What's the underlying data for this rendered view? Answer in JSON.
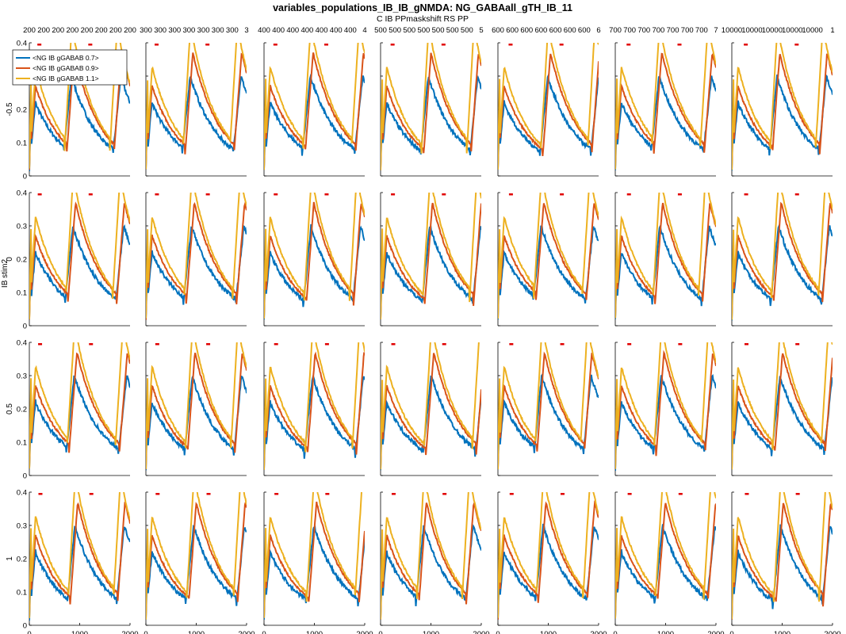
{
  "chart_data": {
    "type": "line",
    "title": "variables_populations_IB_IB_gNMDA: NG_GABAall_gTH_IB_11",
    "subtitle": "C IB PPmaskshift RS PP",
    "rows": [
      "-0.5",
      "0",
      "0.5",
      "1"
    ],
    "row_axis_label": "IB stim2",
    "columns": [
      "200",
      "300",
      "400",
      "500",
      "600",
      "700",
      "10000"
    ],
    "top_tick_labels": [
      [
        "200",
        "200",
        "200",
        "200",
        "200",
        "200",
        "200",
        "200"
      ],
      [
        "300",
        "300",
        "300",
        "300",
        "300",
        "300",
        "300",
        "3"
      ],
      [
        "400",
        "400",
        "400",
        "400",
        "400",
        "400",
        "400",
        "4"
      ],
      [
        "500",
        "500",
        "500",
        "500",
        "500",
        "500",
        "500",
        "5"
      ],
      [
        "600",
        "600",
        "600",
        "600",
        "600",
        "600",
        "600",
        "6"
      ],
      [
        "700",
        "700",
        "700",
        "700",
        "700",
        "700",
        "700",
        "7"
      ],
      [
        "10000",
        "10000",
        "10000",
        "10000",
        "10000",
        "1"
      ]
    ],
    "xlim": [
      0,
      2000
    ],
    "ylim": [
      0,
      0.4
    ],
    "xticks": [
      0,
      1000,
      2000
    ],
    "xtick_labels": [
      "0",
      "1000",
      "2000"
    ],
    "yticks": [
      0,
      0.1,
      0.2,
      0.3,
      0.4
    ],
    "ytick_labels": [
      "0",
      "0.1",
      "0.2",
      "0.3",
      "0.4"
    ],
    "legend": {
      "location": "top-left of first panel",
      "entries": [
        "<NG IB gGABAB 0.7>",
        "<NG IB gGABAB 0.9>",
        "<NG IB gGABAB 1.1>"
      ]
    },
    "series": [
      {
        "name": "<NG IB gGABAB 0.7>",
        "color": "#0072bd",
        "peak": 0.3
      },
      {
        "name": "<NG IB gGABAB 0.9>",
        "color": "#d95319",
        "peak": 0.37
      },
      {
        "name": "<NG IB gGABAB 1.1>",
        "color": "#edb120",
        "peak": 0.45
      }
    ],
    "stim_marker_color": "#e00000",
    "stim_markers_approx_x": [
      200,
      1200
    ]
  }
}
